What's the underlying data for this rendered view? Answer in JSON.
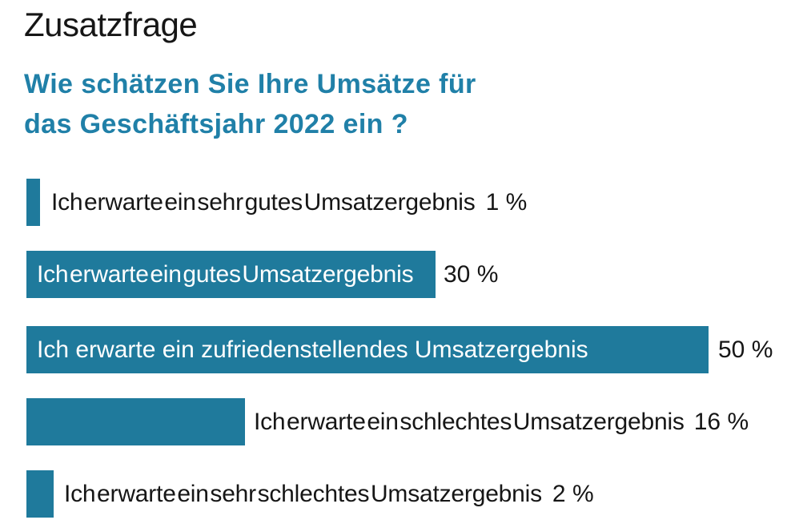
{
  "header": {
    "title": "Zusatzfrage",
    "question_line1": "Wie schätzen Sie Ihre Umsätze für",
    "question_line2": "das Geschäftsjahr 2022 ein ?"
  },
  "colors": {
    "bar": "#1f7a9c",
    "question_text": "#2080a8",
    "title_text": "#161616",
    "label_text": "#161616",
    "inside_label_text": "#ffffff",
    "background": "#ffffff"
  },
  "chart_data": {
    "type": "bar",
    "orientation": "horizontal",
    "title": "Zusatzfrage",
    "subtitle": "Wie schätzen Sie Ihre Umsätze für das Geschäftsjahr 2022 ein ?",
    "categories": [
      "Ich erwarte ein sehr gutes Umsatzergebnis",
      "Ich erwarte ein gutes Umsatzergebnis",
      "Ich erwarte ein zufriedenstellendes Umsatzergebnis",
      "Ich erwarte ein schlechtes Umsatzergebnis",
      "Ich erwarte ein sehr schlechtes Umsatzergebnis"
    ],
    "values": [
      1,
      30,
      50,
      16,
      2
    ],
    "value_labels": [
      "1 %",
      "30 %",
      "50 %",
      "16 %",
      "2 %"
    ],
    "unit": "%",
    "xlim": [
      0,
      50
    ],
    "grid": false,
    "legend": false,
    "label_placement": [
      "outside",
      "inside",
      "inside",
      "outside",
      "outside"
    ],
    "bar_color": "#1f7a9c"
  }
}
